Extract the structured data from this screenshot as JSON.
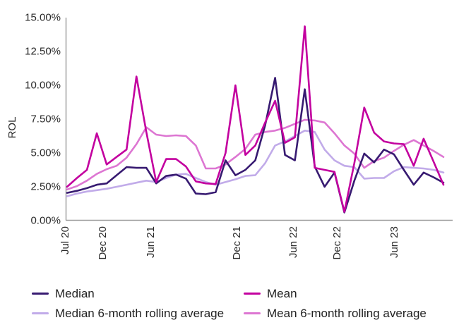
{
  "chart_data": {
    "type": "line",
    "title": "",
    "xlabel": "",
    "ylabel": "ROL",
    "ylim": [
      0,
      15
    ],
    "grid": false,
    "legend_position": "bottom",
    "axis_color": "#9a9a9a",
    "y_ticks": [
      {
        "value": 0,
        "label": "0.00%"
      },
      {
        "value": 2.5,
        "label": "2.50%"
      },
      {
        "value": 5,
        "label": "5.00%"
      },
      {
        "value": 7.5,
        "label": "7.50%"
      },
      {
        "value": 10,
        "label": "10.00%"
      },
      {
        "value": 12.5,
        "label": "12.50%"
      },
      {
        "value": 15,
        "label": "15.00%"
      }
    ],
    "x_tick_labels": [
      {
        "label": "Jul 20",
        "pos": -0.2
      },
      {
        "label": "Dec 20",
        "pos": 3.56
      },
      {
        "label": "Jun 21",
        "pos": 8.41
      },
      {
        "label": "Dec 21",
        "pos": 17.11
      },
      {
        "label": "Jun 22",
        "pos": 22.81
      },
      {
        "label": "Dec 22",
        "pos": 27.23
      },
      {
        "label": "Jun 23",
        "pos": 33.0
      }
    ],
    "series": [
      {
        "name": "Median",
        "color": "#371a71",
        "values": [
          2.0,
          2.15,
          2.35,
          2.6,
          2.7,
          3.3,
          3.9,
          3.85,
          3.85,
          2.7,
          3.25,
          3.35,
          3.05,
          1.95,
          1.9,
          2.05,
          4.4,
          3.3,
          3.7,
          4.4,
          7.0,
          10.5,
          4.8,
          4.4,
          9.65,
          3.95,
          2.45,
          3.5,
          0.55,
          2.9,
          4.9,
          4.25,
          5.2,
          4.85,
          3.7,
          2.6,
          3.5,
          3.15,
          2.75
        ]
      },
      {
        "name": "Mean",
        "color": "#c3009f",
        "values": [
          2.45,
          3.1,
          3.7,
          6.4,
          4.1,
          4.65,
          5.2,
          10.6,
          6.5,
          2.8,
          4.5,
          4.5,
          3.95,
          2.85,
          2.7,
          2.65,
          4.95,
          9.95,
          4.8,
          5.5,
          7.2,
          8.8,
          5.7,
          6.1,
          14.3,
          3.85,
          3.7,
          3.55,
          0.6,
          4.2,
          8.3,
          6.45,
          5.8,
          5.65,
          5.6,
          4.0,
          6.0,
          4.3,
          2.6
        ]
      },
      {
        "name": "Median 6-month rolling average",
        "color": "#c1abe9",
        "values": [
          1.75,
          1.95,
          2.1,
          2.2,
          2.3,
          2.45,
          2.6,
          2.75,
          2.9,
          2.8,
          3.1,
          3.35,
          3.4,
          3.1,
          2.8,
          2.6,
          2.8,
          3.0,
          3.25,
          3.3,
          4.2,
          5.5,
          5.8,
          6.2,
          6.6,
          6.5,
          5.2,
          4.4,
          4.0,
          3.9,
          3.05,
          3.1,
          3.1,
          3.6,
          3.9,
          3.85,
          3.8,
          3.7,
          3.5
        ]
      },
      {
        "name": "Mean 6-month rolling average",
        "color": "#dd76d2",
        "values": [
          2.25,
          2.5,
          2.9,
          3.4,
          3.75,
          4.0,
          4.6,
          5.6,
          6.85,
          6.3,
          6.2,
          6.25,
          6.2,
          5.5,
          3.8,
          3.8,
          4.1,
          4.65,
          5.25,
          6.3,
          6.5,
          6.6,
          6.8,
          7.1,
          7.4,
          7.35,
          7.2,
          6.4,
          5.5,
          4.9,
          3.85,
          4.35,
          4.6,
          5.1,
          5.55,
          5.9,
          5.5,
          5.1,
          4.65
        ]
      }
    ]
  },
  "legend": {
    "items": [
      {
        "label": "Median"
      },
      {
        "label": "Mean"
      },
      {
        "label": "Median 6-month rolling average"
      },
      {
        "label": "Mean 6-month rolling average"
      }
    ]
  }
}
